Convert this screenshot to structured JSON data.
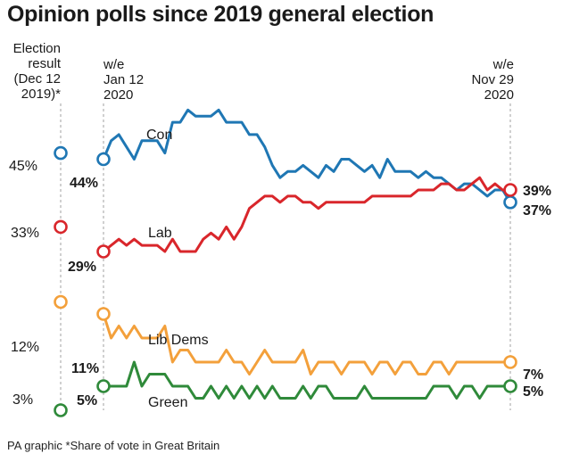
{
  "title": "Opinion polls since 2019 general election",
  "footer": {
    "source": "PA graphic",
    "note": "*Share of vote in Great Britain"
  },
  "headers": {
    "election": [
      "Election",
      "result",
      "(Dec 12",
      "2019)*"
    ],
    "start": [
      "w/e",
      "Jan 12",
      "2020"
    ],
    "end": [
      "w/e",
      "Nov 29",
      "2020"
    ]
  },
  "colors": {
    "Con": "#1f77b4",
    "Lab": "#d9262b",
    "Lib Dems": "#f3a03b",
    "Green": "#2f8a3a",
    "guide": "#b0b0b0"
  },
  "chart_data": {
    "type": "line",
    "title": "Opinion polls since 2019 general election",
    "x_start": "w/e Jan 12 2020",
    "x_end": "w/e Nov 29 2020",
    "y_unit": "% share of vote",
    "ylim": [
      2,
      54
    ],
    "series": [
      {
        "name": "Con",
        "election_result": 45,
        "election_label": "45%",
        "start_label": "44%",
        "end_label": "37%",
        "values": [
          44,
          47,
          48,
          46,
          44,
          47,
          47,
          47,
          45,
          50,
          50,
          52,
          51,
          51,
          51,
          52,
          50,
          50,
          50,
          48,
          48,
          46,
          43,
          41,
          42,
          42,
          43,
          42,
          41,
          43,
          42,
          44,
          44,
          43,
          42,
          43,
          41,
          44,
          42,
          42,
          42,
          41,
          42,
          41,
          41,
          40,
          39,
          40,
          40,
          39,
          38,
          39,
          39,
          37
        ]
      },
      {
        "name": "Lab",
        "election_result": 33,
        "election_label": "33%",
        "start_label": "29%",
        "end_label": "39%",
        "values": [
          29,
          30,
          31,
          30,
          31,
          30,
          30,
          30,
          29,
          31,
          29,
          29,
          29,
          31,
          32,
          31,
          33,
          31,
          33,
          36,
          37,
          38,
          38,
          37,
          38,
          38,
          37,
          37,
          36,
          37,
          37,
          37,
          37,
          37,
          37,
          38,
          38,
          38,
          38,
          38,
          38,
          39,
          39,
          39,
          40,
          40,
          39,
          39,
          40,
          41,
          39,
          40,
          39,
          39
        ]
      },
      {
        "name": "Lib Dems",
        "election_result": 12,
        "election_label": "12%",
        "start_label": "11%",
        "end_label": "7%",
        "values": [
          11,
          9,
          10,
          9,
          10,
          9,
          9,
          9,
          10,
          7,
          8,
          8,
          7,
          7,
          7,
          7,
          8,
          7,
          7,
          6,
          7,
          8,
          7,
          7,
          7,
          7,
          8,
          6,
          7,
          7,
          7,
          6,
          7,
          7,
          7,
          6,
          7,
          7,
          6,
          7,
          7,
          6,
          6,
          7,
          7,
          6,
          7,
          7,
          7,
          7,
          7,
          7,
          7,
          7
        ]
      },
      {
        "name": "Green",
        "election_result": 3,
        "election_label": "3%",
        "start_label": "5%",
        "end_label": "5%",
        "values": [
          5,
          5,
          5,
          5,
          7,
          5,
          6,
          6,
          6,
          5,
          5,
          5,
          4,
          4,
          5,
          4,
          5,
          4,
          5,
          4,
          5,
          4,
          5,
          4,
          4,
          4,
          5,
          4,
          5,
          5,
          4,
          4,
          4,
          4,
          5,
          4,
          4,
          4,
          4,
          4,
          4,
          4,
          4,
          5,
          5,
          5,
          4,
          5,
          5,
          4,
          5,
          5,
          5,
          5
        ]
      }
    ],
    "series_labels": [
      {
        "series": "Con",
        "text": "Con"
      },
      {
        "series": "Lab",
        "text": "Lab"
      },
      {
        "series": "Lib Dems",
        "text": "Lib Dems"
      },
      {
        "series": "Green",
        "text": "Green"
      }
    ]
  }
}
